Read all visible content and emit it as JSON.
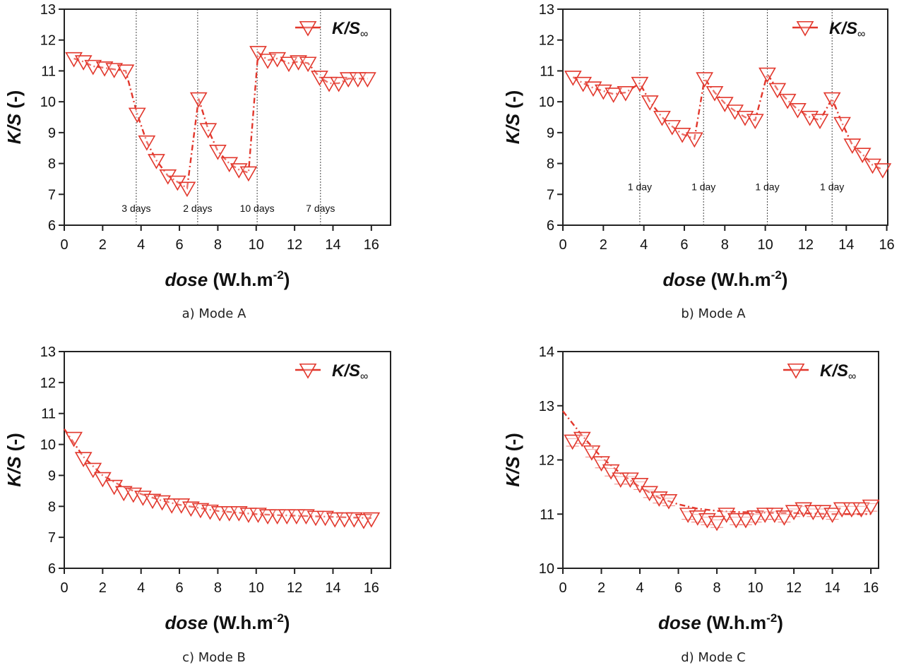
{
  "colors": {
    "series": "#e2372c",
    "axis": "#222222",
    "divider": "#444444"
  },
  "chart_data": [
    {
      "type": "line",
      "caption": "a) Mode A",
      "xlabel_italic": "dose",
      "xlabel_rest": " (W.h.m",
      "xlabel_sup": "-2",
      "xlabel_end": ")",
      "ylabel_italic": "K/S",
      "ylabel_rest": " (-)",
      "legend": {
        "label": "K/S",
        "sub": "∞",
        "placement": "top-right"
      },
      "xlim": [
        0,
        17
      ],
      "ylim": [
        6,
        13
      ],
      "xticks": [
        0,
        2,
        4,
        6,
        8,
        10,
        12,
        14,
        16
      ],
      "yticks": [
        6,
        7,
        8,
        9,
        10,
        11,
        12,
        13
      ],
      "marker": "triangle-down-open",
      "line_style": "dash-dot",
      "vlines": [
        {
          "x": 3.75,
          "label": "3 days",
          "label_y": 6.55
        },
        {
          "x": 6.95,
          "label": "2 days",
          "label_y": 6.55
        },
        {
          "x": 10.05,
          "label": "10 days",
          "label_y": 6.55
        },
        {
          "x": 13.35,
          "label": "7 days",
          "label_y": 6.55
        }
      ],
      "series": [
        {
          "name": "K/S∞",
          "x": [
            0.5,
            1.0,
            1.5,
            2.1,
            2.6,
            3.2,
            3.8,
            4.3,
            4.8,
            5.4,
            5.9,
            6.4,
            7.0,
            7.5,
            8.0,
            8.6,
            9.1,
            9.6,
            10.1,
            10.6,
            11.1,
            11.7,
            12.2,
            12.7,
            13.3,
            13.8,
            14.3,
            14.8,
            15.3,
            15.8
          ],
          "y": [
            11.4,
            11.3,
            11.15,
            11.1,
            11.05,
            11.0,
            9.6,
            8.7,
            8.1,
            7.6,
            7.4,
            7.2,
            10.1,
            9.1,
            8.4,
            8.0,
            7.8,
            7.7,
            11.6,
            11.35,
            11.4,
            11.25,
            11.3,
            11.25,
            10.8,
            10.6,
            10.6,
            10.75,
            10.75,
            10.75
          ]
        }
      ]
    },
    {
      "type": "line",
      "caption": "b) Mode A",
      "xlabel_italic": "dose",
      "xlabel_rest": " (W.h.m",
      "xlabel_sup": "-2",
      "xlabel_end": ")",
      "ylabel_italic": "K/S",
      "ylabel_rest": " (-)",
      "legend": {
        "label": "K/S",
        "sub": "∞",
        "placement": "top-right"
      },
      "xlim": [
        0,
        16.05
      ],
      "ylim": [
        6,
        13
      ],
      "xticks": [
        0,
        2,
        4,
        6,
        8,
        10,
        12,
        14,
        16
      ],
      "yticks": [
        6,
        7,
        8,
        9,
        10,
        11,
        12,
        13
      ],
      "marker": "triangle-down-open",
      "line_style": "dash-dot",
      "vlines": [
        {
          "x": 3.8,
          "label": "1 day",
          "label_y": 7.25
        },
        {
          "x": 6.95,
          "label": "1 day",
          "label_y": 7.25
        },
        {
          "x": 10.1,
          "label": "1 day",
          "label_y": 7.25
        },
        {
          "x": 13.3,
          "label": "1 day",
          "label_y": 7.25
        }
      ],
      "series": [
        {
          "name": "K/S∞",
          "x": [
            0.5,
            1.0,
            1.5,
            2.0,
            2.5,
            3.1,
            3.8,
            4.3,
            4.9,
            5.4,
            5.9,
            6.5,
            7.0,
            7.5,
            8.0,
            8.5,
            9.0,
            9.5,
            10.1,
            10.6,
            11.1,
            11.6,
            12.2,
            12.7,
            13.3,
            13.8,
            14.3,
            14.8,
            15.3,
            15.8
          ],
          "y": [
            10.8,
            10.6,
            10.45,
            10.35,
            10.25,
            10.3,
            10.6,
            10.0,
            9.5,
            9.2,
            8.95,
            8.8,
            10.75,
            10.3,
            9.95,
            9.7,
            9.5,
            9.4,
            10.9,
            10.4,
            10.05,
            9.75,
            9.5,
            9.4,
            10.1,
            9.3,
            8.6,
            8.3,
            7.95,
            7.8
          ]
        }
      ]
    },
    {
      "type": "scatter",
      "caption": "c) Mode B",
      "xlabel_italic": "dose",
      "xlabel_rest": " (W.h.m",
      "xlabel_sup": "-2",
      "xlabel_end": ")",
      "ylabel_italic": "K/S",
      "ylabel_rest": " (-)",
      "legend": {
        "label": "K/S",
        "sub": "∞",
        "placement": "top-right"
      },
      "xlim": [
        0,
        17
      ],
      "ylim": [
        6,
        13
      ],
      "xticks": [
        0,
        2,
        4,
        6,
        8,
        10,
        12,
        14,
        16
      ],
      "yticks": [
        6,
        7,
        8,
        9,
        10,
        11,
        12,
        13
      ],
      "marker": "triangle-down-open",
      "line_style": "dash-dot",
      "vlines": [],
      "series": [
        {
          "name": "K/S∞",
          "x": [
            0.5,
            1.0,
            1.5,
            2.0,
            2.6,
            3.1,
            3.6,
            4.1,
            4.6,
            5.1,
            5.6,
            6.1,
            6.6,
            7.1,
            7.6,
            8.1,
            8.6,
            9.1,
            9.6,
            10.1,
            10.6,
            11.1,
            11.6,
            12.1,
            12.6,
            13.1,
            13.6,
            14.1,
            14.6,
            15.1,
            15.6,
            16.0
          ],
          "y": [
            10.2,
            9.55,
            9.2,
            8.9,
            8.65,
            8.45,
            8.4,
            8.3,
            8.2,
            8.15,
            8.05,
            8.05,
            7.95,
            7.9,
            7.85,
            7.8,
            7.8,
            7.8,
            7.75,
            7.75,
            7.7,
            7.7,
            7.7,
            7.7,
            7.7,
            7.65,
            7.65,
            7.6,
            7.6,
            7.6,
            7.55,
            7.6
          ]
        }
      ],
      "fit": {
        "x": [
          0,
          1,
          2,
          3,
          4,
          5,
          6,
          7,
          8,
          9,
          10,
          11,
          12,
          13,
          14,
          15,
          16
        ],
        "y": [
          10.5,
          9.6,
          9.0,
          8.65,
          8.4,
          8.2,
          8.05,
          7.95,
          7.85,
          7.8,
          7.75,
          7.72,
          7.7,
          7.68,
          7.66,
          7.64,
          7.62
        ]
      }
    },
    {
      "type": "scatter",
      "caption": "d) Mode C",
      "xlabel_italic": "dose",
      "xlabel_rest": " (W.h.m",
      "xlabel_sup": "-2",
      "xlabel_end": ")",
      "ylabel_italic": "K/S",
      "ylabel_rest": " (-)",
      "legend": {
        "label": "K/S",
        "sub": "∞",
        "placement": "top-right"
      },
      "xlim": [
        0,
        16.4
      ],
      "ylim": [
        10,
        14
      ],
      "xticks": [
        0,
        2,
        4,
        6,
        8,
        10,
        12,
        14,
        16
      ],
      "yticks": [
        10,
        11,
        12,
        13,
        14
      ],
      "marker": "triangle-down-open",
      "line_style": "dash-dot",
      "error_bars": true,
      "vlines": [],
      "series": [
        {
          "name": "K/S∞",
          "x": [
            0.5,
            1.0,
            1.5,
            2.0,
            2.5,
            3.0,
            3.5,
            4.0,
            4.5,
            5.0,
            5.5,
            6.5,
            7.0,
            7.5,
            8.0,
            8.5,
            9.0,
            9.5,
            10.0,
            10.5,
            11.0,
            11.5,
            12.0,
            12.5,
            13.0,
            13.5,
            14.0,
            14.5,
            15.0,
            15.5,
            16.0
          ],
          "y": [
            12.35,
            12.4,
            12.15,
            11.95,
            11.8,
            11.65,
            11.65,
            11.55,
            11.4,
            11.3,
            11.25,
            11.0,
            10.95,
            10.9,
            10.85,
            11.0,
            10.9,
            10.9,
            10.95,
            11.0,
            11.0,
            10.95,
            11.05,
            11.1,
            11.05,
            11.05,
            11.0,
            11.1,
            11.1,
            11.1,
            11.15
          ]
        }
      ],
      "fit": {
        "x": [
          0,
          1,
          2,
          3,
          4,
          5,
          6,
          7,
          8,
          9,
          10,
          11,
          12,
          13,
          14,
          15,
          16
        ],
        "y": [
          12.9,
          12.45,
          12.05,
          11.75,
          11.5,
          11.3,
          11.18,
          11.1,
          11.06,
          11.04,
          11.03,
          11.02,
          11.02,
          11.01,
          11.0,
          11.0,
          11.0
        ]
      }
    }
  ]
}
